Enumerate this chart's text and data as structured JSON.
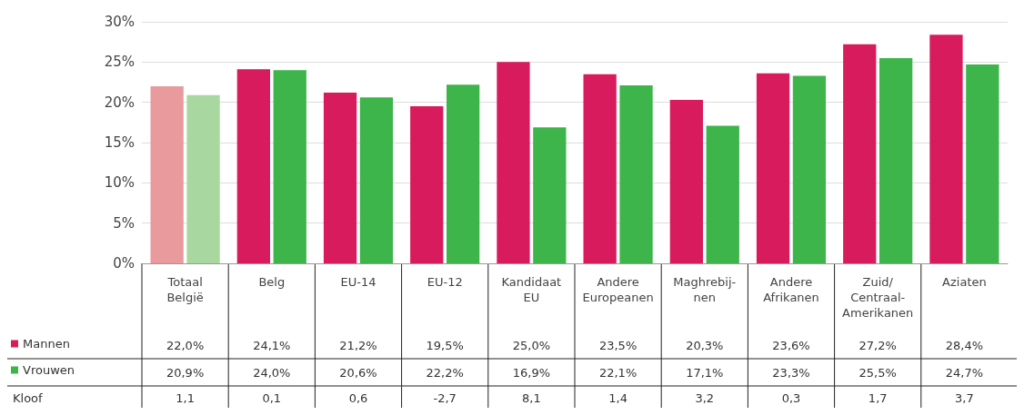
{
  "chart_data": {
    "type": "bar",
    "categories": [
      "Totaal\nBelgië",
      "Belg",
      "EU-14",
      "EU-12",
      "Kandidaat\nEU",
      "Andere\nEuropeanen",
      "Maghrebij-\nnen",
      "Andere\nAfrikanen",
      "Zuid/\nCentraal-\nAmerikanen",
      "Aziaten"
    ],
    "series": [
      {
        "name": "Mannen",
        "color": "#d81b5c",
        "colors": [
          "#e89a9c",
          "#d81b5c",
          "#d81b5c",
          "#d81b5c",
          "#d81b5c",
          "#d81b5c",
          "#d81b5c",
          "#d81b5c",
          "#d81b5c",
          "#d81b5c"
        ],
        "values": [
          22.0,
          24.1,
          21.2,
          19.5,
          25.0,
          23.5,
          20.3,
          23.6,
          27.2,
          28.4
        ],
        "value_labels": [
          "22,0%",
          "24,1%",
          "21,2%",
          "19,5%",
          "25,0%",
          "23,5%",
          "20,3%",
          "23,6%",
          "27,2%",
          "28,4%"
        ]
      },
      {
        "name": "Vrouwen",
        "color": "#3db54a",
        "colors": [
          "#a8d8a0",
          "#3db54a",
          "#3db54a",
          "#3db54a",
          "#3db54a",
          "#3db54a",
          "#3db54a",
          "#3db54a",
          "#3db54a",
          "#3db54a"
        ],
        "values": [
          20.9,
          24.0,
          20.6,
          22.2,
          16.9,
          22.1,
          17.1,
          23.3,
          25.5,
          24.7
        ],
        "value_labels": [
          "20,9%",
          "24,0%",
          "20,6%",
          "22,2%",
          "16,9%",
          "22,1%",
          "17,1%",
          "23,3%",
          "25,5%",
          "24,7%"
        ]
      }
    ],
    "annotations": [
      "Kloof",
      "1,1",
      "0,1",
      "0,6",
      "-2,7",
      "8,1",
      "1,4",
      "3,2",
      "0,3",
      "1,7",
      "3,7"
    ],
    "ylim": [
      0,
      30
    ],
    "yticks": [
      {
        "value": 0,
        "label": "0%"
      },
      {
        "value": 5,
        "label": "5%"
      },
      {
        "value": 10,
        "label": "10%"
      },
      {
        "value": 15,
        "label": "15%"
      },
      {
        "value": 20,
        "label": "20%"
      },
      {
        "value": 25,
        "label": "25%"
      },
      {
        "value": 30,
        "label": "30%"
      }
    ],
    "grid": "y",
    "legend": "bottom left"
  }
}
